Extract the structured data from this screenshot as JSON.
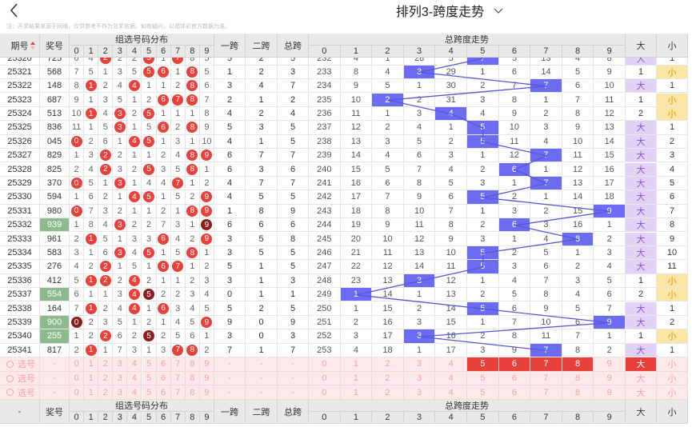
{
  "topbar": {
    "title": "排列3-跨度走势",
    "notice": "注：开奖结果来源于网络，仅供参考不作为兑奖依据，如有疑问，以福体彩官方数据为准。"
  },
  "header": {
    "issue": "期号",
    "number": "奖号",
    "dist": "组选号码分布",
    "span1": "一跨",
    "span2": "二跨",
    "total": "总跨",
    "trend": "总跨度走势",
    "big": "大",
    "small": "小",
    "digits": [
      0,
      1,
      2,
      3,
      4,
      5,
      6,
      7,
      8,
      9
    ]
  },
  "rows": [
    {
      "issue": 25320,
      "number": "725",
      "dist": [
        6,
        4,
        2,
        2,
        2,
        5,
        1,
        7,
        8,
        5
      ],
      "span1": 5,
      "span2": 2,
      "total": 5,
      "trend": [
        232,
        4,
        1,
        28,
        5,
        7,
        5,
        13,
        4,
        8
      ],
      "big": "大",
      "small": 1
    },
    {
      "issue": 25321,
      "number": "568",
      "dist": [
        7,
        5,
        1,
        3,
        5,
        5,
        6,
        1,
        8,
        5
      ],
      "span1": 1,
      "span2": 2,
      "total": 3,
      "trend": [
        233,
        8,
        4,
        3,
        29,
        1,
        6,
        14,
        5,
        9
      ],
      "big": 1,
      "small": "小"
    },
    {
      "issue": 25322,
      "number": "148",
      "dist": [
        8,
        1,
        2,
        4,
        4,
        1,
        1,
        2,
        8,
        6
      ],
      "span1": 3,
      "span2": 4,
      "total": 7,
      "trend": [
        234,
        9,
        5,
        1,
        30,
        2,
        7,
        7,
        6,
        10
      ],
      "big": "大",
      "small": 1
    },
    {
      "issue": 25323,
      "number": "687",
      "dist": [
        9,
        1,
        3,
        5,
        1,
        2,
        6,
        7,
        8,
        7
      ],
      "span1": 2,
      "span2": 1,
      "total": 2,
      "trend": [
        235,
        10,
        2,
        2,
        31,
        3,
        8,
        1,
        7,
        11
      ],
      "big": 1,
      "small": "小"
    },
    {
      "issue": 25324,
      "number": "513",
      "dist": [
        10,
        1,
        4,
        3,
        2,
        5,
        1,
        1,
        1,
        8
      ],
      "span1": 4,
      "span2": 2,
      "total": 4,
      "trend": [
        236,
        11,
        1,
        3,
        4,
        4,
        9,
        2,
        8,
        12
      ],
      "big": 2,
      "small": "小"
    },
    {
      "issue": 25325,
      "number": "836",
      "dist": [
        11,
        1,
        5,
        3,
        1,
        5,
        6,
        2,
        8,
        9
      ],
      "span1": 5,
      "span2": 3,
      "total": 5,
      "trend": [
        237,
        12,
        2,
        4,
        1,
        5,
        10,
        3,
        9,
        13
      ],
      "big": "大",
      "small": 1
    },
    {
      "issue": 25326,
      "number": "045",
      "dist": [
        0,
        2,
        6,
        1,
        4,
        5,
        1,
        3,
        1,
        10
      ],
      "span1": 4,
      "span2": 1,
      "total": 5,
      "trend": [
        238,
        13,
        3,
        5,
        2,
        5,
        11,
        4,
        10,
        14
      ],
      "big": "大",
      "small": 2
    },
    {
      "issue": 25327,
      "number": "829",
      "dist": [
        1,
        3,
        2,
        2,
        1,
        1,
        2,
        4,
        8,
        9
      ],
      "span1": 6,
      "span2": 7,
      "total": 7,
      "trend": [
        239,
        14,
        4,
        6,
        3,
        1,
        12,
        7,
        11,
        15
      ],
      "big": "大",
      "small": 3
    },
    {
      "issue": 25328,
      "number": "825",
      "dist": [
        2,
        4,
        2,
        3,
        2,
        5,
        3,
        5,
        8,
        1
      ],
      "span1": 6,
      "span2": 3,
      "total": 6,
      "trend": [
        240,
        15,
        5,
        7,
        4,
        2,
        6,
        1,
        12,
        16
      ],
      "big": "大",
      "small": 4
    },
    {
      "issue": 25329,
      "number": "370",
      "dist": [
        0,
        5,
        1,
        3,
        1,
        4,
        4,
        7,
        1,
        2
      ],
      "span1": 4,
      "span2": 7,
      "total": 7,
      "trend": [
        241,
        16,
        6,
        8,
        5,
        3,
        1,
        7,
        13,
        17
      ],
      "big": "大",
      "small": 5
    },
    {
      "issue": 25330,
      "number": "594",
      "dist": [
        1,
        6,
        2,
        1,
        4,
        5,
        1,
        5,
        2,
        9
      ],
      "span1": 4,
      "span2": 5,
      "total": 5,
      "trend": [
        242,
        17,
        7,
        9,
        6,
        5,
        2,
        1,
        14,
        18
      ],
      "big": "大",
      "small": 6
    },
    {
      "issue": 25331,
      "number": "980",
      "dist": [
        0,
        7,
        3,
        2,
        1,
        1,
        2,
        1,
        8,
        9
      ],
      "span1": 1,
      "span2": 8,
      "total": 9,
      "trend": [
        243,
        18,
        8,
        10,
        7,
        1,
        3,
        2,
        15,
        9
      ],
      "big": "大",
      "small": 7
    },
    {
      "issue": 25332,
      "number": "939",
      "dist": [
        1,
        8,
        4,
        3,
        2,
        2,
        7,
        3,
        1,
        9
      ],
      "span1": 6,
      "span2": 6,
      "total": 6,
      "trend": [
        244,
        19,
        9,
        11,
        8,
        2,
        6,
        3,
        16,
        1
      ],
      "big": "大",
      "small": 8
    },
    {
      "issue": 25333,
      "number": "961",
      "dist": [
        2,
        1,
        5,
        1,
        3,
        3,
        6,
        4,
        2,
        9
      ],
      "span1": 3,
      "span2": 5,
      "total": 8,
      "trend": [
        245,
        20,
        10,
        12,
        9,
        3,
        1,
        4,
        8,
        2
      ],
      "big": "大",
      "small": 9
    },
    {
      "issue": 25334,
      "number": "583",
      "dist": [
        3,
        1,
        6,
        3,
        4,
        5,
        1,
        5,
        8,
        1
      ],
      "span1": 3,
      "span2": 5,
      "total": 5,
      "trend": [
        246,
        21,
        11,
        13,
        10,
        5,
        2,
        5,
        1,
        3
      ],
      "big": "大",
      "small": 10
    },
    {
      "issue": 25335,
      "number": "276",
      "dist": [
        4,
        2,
        2,
        1,
        5,
        1,
        6,
        7,
        1,
        2
      ],
      "span1": 5,
      "span2": 1,
      "total": 5,
      "trend": [
        247,
        22,
        12,
        14,
        11,
        5,
        3,
        6,
        2,
        4
      ],
      "big": "大",
      "small": 11
    },
    {
      "issue": 25336,
      "number": "412",
      "dist": [
        5,
        1,
        2,
        2,
        4,
        2,
        1,
        1,
        2,
        3
      ],
      "span1": 3,
      "span2": 1,
      "total": 3,
      "trend": [
        248,
        23,
        13,
        3,
        12,
        1,
        4,
        7,
        3,
        5
      ],
      "big": 1,
      "small": "小"
    },
    {
      "issue": 25337,
      "number": "554",
      "dist": [
        6,
        1,
        1,
        3,
        4,
        5,
        2,
        2,
        3,
        4
      ],
      "span1": 0,
      "span2": 1,
      "total": 1,
      "trend": [
        249,
        1,
        14,
        1,
        13,
        2,
        5,
        8,
        4,
        6
      ],
      "big": 2,
      "small": "小"
    },
    {
      "issue": 25338,
      "number": "164",
      "dist": [
        7,
        1,
        2,
        4,
        4,
        1,
        6,
        3,
        4,
        5
      ],
      "span1": 5,
      "span2": 2,
      "total": 5,
      "trend": [
        250,
        1,
        15,
        2,
        14,
        5,
        6,
        9,
        5,
        7
      ],
      "big": "大",
      "small": 1
    },
    {
      "issue": 25339,
      "number": "900",
      "dist": [
        0,
        2,
        3,
        5,
        1,
        2,
        1,
        4,
        5,
        9
      ],
      "span1": 9,
      "span2": 0,
      "total": 9,
      "trend": [
        251,
        2,
        16,
        3,
        15,
        1,
        7,
        10,
        6,
        9
      ],
      "big": "大",
      "small": 2
    },
    {
      "issue": 25340,
      "number": "255",
      "dist": [
        1,
        2,
        2,
        6,
        2,
        5,
        2,
        5,
        6,
        1
      ],
      "span1": 3,
      "span2": 0,
      "total": 3,
      "trend": [
        252,
        3,
        17,
        3,
        16,
        2,
        8,
        11,
        7,
        1
      ],
      "big": 1,
      "small": "小"
    },
    {
      "issue": 25341,
      "number": "817",
      "dist": [
        2,
        1,
        1,
        7,
        3,
        1,
        3,
        7,
        8,
        2
      ],
      "span1": 7,
      "span2": 1,
      "total": 7,
      "trend": [
        253,
        4,
        18,
        1,
        17,
        3,
        9,
        7,
        8,
        2
      ],
      "big": "大",
      "small": 1
    }
  ],
  "select": {
    "label": "选号",
    "dash": "-",
    "rows": [
      {
        "selected": [
          5,
          6,
          7,
          8
        ],
        "big_selected": true
      },
      {
        "selected": [],
        "big_selected": false
      },
      {
        "selected": [],
        "big_selected": false
      }
    ]
  }
}
